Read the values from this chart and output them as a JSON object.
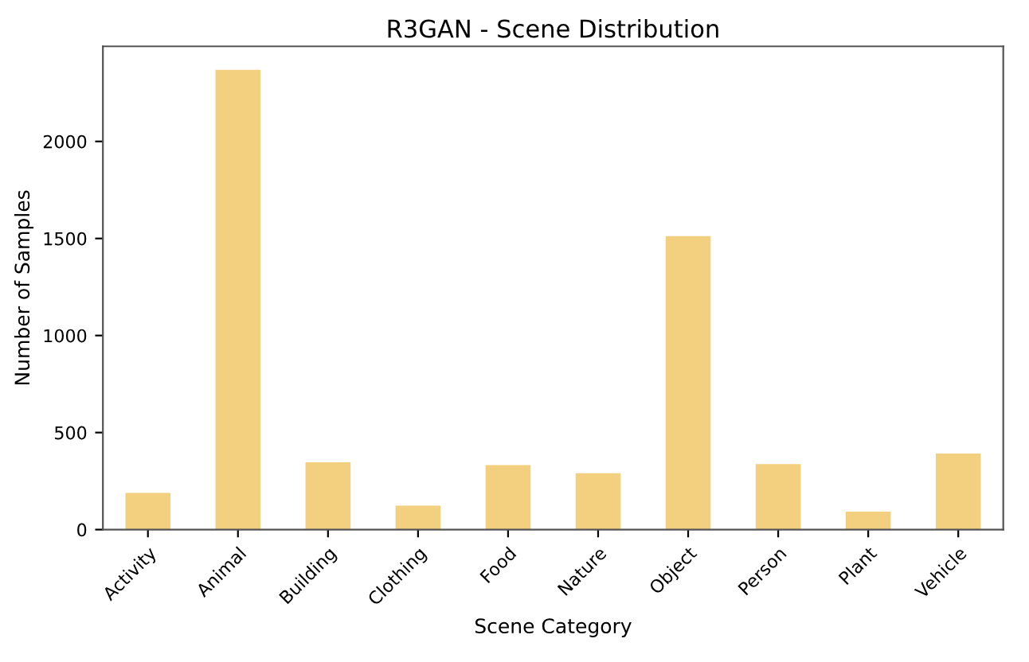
{
  "chart_data": {
    "type": "bar",
    "title": "R3GAN - Scene Distribution",
    "xlabel": "Scene Category",
    "ylabel": "Number of Samples",
    "categories": [
      "Activity",
      "Animal",
      "Building",
      "Clothing",
      "Food",
      "Nature",
      "Object",
      "Person",
      "Plant",
      "Vehicle"
    ],
    "values": [
      189,
      2369,
      347,
      123,
      332,
      290,
      1512,
      338,
      93,
      392
    ],
    "color": "#f3d07f",
    "ylim": [
      0,
      2490
    ],
    "yticks": [
      0,
      500,
      1000,
      1500,
      2000
    ],
    "grid": false,
    "legend": false
  }
}
